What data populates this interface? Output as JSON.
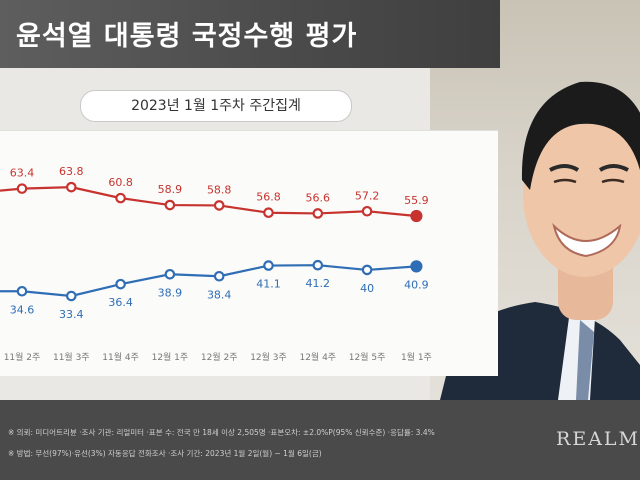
{
  "header": {
    "title": "윤석열 대통령 국정수행 평가"
  },
  "chart_data": {
    "type": "line",
    "title": "윤석열 대통령 국정수행 평가",
    "subtitle": "2023년 1월 1주차 주간집계",
    "categories": [
      "11월 2주",
      "11월 3주",
      "11월 4주",
      "12월 1주",
      "12월 2주",
      "12월 3주",
      "12월 4주",
      "12월 5주",
      "1월 1주"
    ],
    "series": [
      {
        "name": "",
        "color": "#c7342f",
        "values": [
          63.4,
          63.8,
          60.8,
          58.9,
          58.8,
          56.8,
          56.6,
          57.2,
          55.9
        ]
      },
      {
        "name": "",
        "color": "#2f6db5",
        "values": [
          34.6,
          33.4,
          36.4,
          38.9,
          38.4,
          41.1,
          41.2,
          40.0,
          40.9
        ]
      }
    ],
    "grid": false,
    "legend": "none"
  },
  "footer": {
    "line1": "※ 의뢰: 미디어트리뷴 ·조사 기관: 리얼미터 ·표본 수: 전국 만 18세 이상 2,505명 ·표본오차: ±2.0%P(95% 신뢰수준) ·응답률: 3.4%",
    "line2": "※ 방법: 무선(97%)·유선(3%) 자동응답 전화조사 ·조사 기간: 2023년 1월 2일(월) ~ 1월 6일(금)",
    "brand": "REALM"
  },
  "colors": {
    "negative": "#c7342f",
    "positive": "#2f6db5",
    "header_bg": "#4a4a4a"
  }
}
